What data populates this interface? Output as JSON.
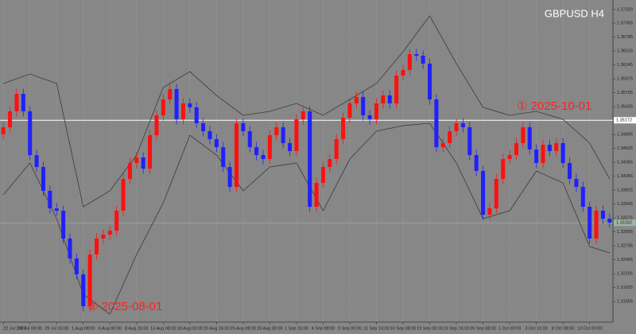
{
  "chart_data": {
    "type": "candlestick",
    "title": "GBPUSD  H4",
    "annotations": [
      "① 2025-10-01",
      "② 2025-08-01"
    ],
    "annotation_color": "#ff2020",
    "up_color": "#ff1010",
    "down_color": "#2020ff",
    "background": "#878787",
    "xgrid": true,
    "categories": [
      "22 Jul 2025",
      null,
      null,
      null,
      "24 Jul 08:00",
      null,
      null,
      null,
      "29 Jul 16:00",
      null,
      null,
      null,
      "1 Aug 08:00",
      null,
      null,
      null,
      "6 Aug 00:00",
      null,
      null,
      null,
      "8 Aug 16:00",
      null,
      null,
      null,
      "13 Aug 08:00",
      null,
      null,
      null,
      "18 Aug 00:00",
      null,
      null,
      null,
      "20 Aug 16:00",
      null,
      null,
      null,
      "25 Aug 08:00",
      null,
      null,
      null,
      "28 Aug 00:00",
      null,
      null,
      null,
      "1 Sep 16:00",
      null,
      null,
      null,
      "4 Sep 08:00",
      null,
      null,
      null,
      "9 Sep 00:00",
      null,
      null,
      null,
      "11 Sep 16:00",
      null,
      null,
      null,
      "16 Sep 08:00",
      null,
      null,
      null,
      "19 Sep 00:00",
      null,
      null,
      null,
      "23 Sep 16:00",
      null,
      null,
      null,
      "26 Sep 08:00",
      null,
      null,
      null,
      "1 Oct 00:00",
      null,
      null,
      null,
      "3 Oct 16:00",
      null,
      null,
      null,
      "8 Oct 08:00",
      null,
      null,
      null,
      "13 Oct 00:00",
      null,
      null,
      null
    ],
    "open": [
      1.349,
      1.35036,
      1.35345,
      1.35684,
      1.35345,
      1.34496,
      1.34265,
      1.33802,
      1.33462,
      1.33416,
      1.32876,
      1.3249,
      1.32182,
      1.31564,
      1.32567,
      1.32876,
      1.32953,
      1.3303,
      1.33416,
      1.34033,
      1.34342,
      1.3445,
      1.34234,
      1.34882,
      1.35268,
      1.35576,
      1.35777,
      1.35191,
      1.35499,
      1.35422,
      1.35113,
      1.34959,
      1.34805,
      1.3465,
      1.34265,
      1.33879,
      1.35113,
      1.34959,
      1.3465,
      1.34496,
      1.34419,
      1.34882,
      1.35036,
      1.34728,
      1.34573,
      1.35191,
      1.35345,
      1.33493,
      1.33956,
      1.34265,
      1.34419,
      1.34805,
      1.35221,
      1.35499,
      1.35623,
      1.35268,
      1.35191,
      1.35499,
      1.35653,
      1.35499,
      1.36039,
      1.36147,
      1.36456,
      1.36425,
      1.36271,
      1.35576,
      1.3465,
      1.34728,
      1.34959,
      1.35113,
      1.35036,
      1.34496,
      1.34188,
      1.33339,
      1.33462,
      1.34033,
      1.34419,
      1.34496,
      1.34728,
      1.35036,
      1.34604,
      1.34342,
      1.34697,
      1.34573,
      1.34728,
      1.34342,
      1.34033,
      1.33879,
      1.33493,
      1.32876,
      1.33416,
      1.33262
    ],
    "high": [
      1.35136,
      1.35445,
      1.35784,
      1.35784,
      1.35445,
      1.34596,
      1.34365,
      1.33902,
      1.33562,
      1.33516,
      1.32976,
      1.3259,
      1.32282,
      1.32667,
      1.32976,
      1.33053,
      1.3313,
      1.33516,
      1.34133,
      1.34442,
      1.3455,
      1.3455,
      1.34982,
      1.35368,
      1.35676,
      1.35877,
      1.35877,
      1.35599,
      1.35599,
      1.35522,
      1.35213,
      1.35059,
      1.34905,
      1.3475,
      1.34365,
      1.35213,
      1.35213,
      1.35059,
      1.3475,
      1.34596,
      1.34982,
      1.35136,
      1.35136,
      1.34828,
      1.35291,
      1.35445,
      1.35445,
      1.34056,
      1.34365,
      1.34519,
      1.34905,
      1.35321,
      1.35599,
      1.35723,
      1.35723,
      1.35368,
      1.35599,
      1.35753,
      1.35753,
      1.36139,
      1.36247,
      1.36556,
      1.36556,
      1.36525,
      1.36371,
      1.35676,
      1.34828,
      1.35059,
      1.35213,
      1.35213,
      1.35136,
      1.34596,
      1.34288,
      1.33562,
      1.34133,
      1.34519,
      1.34596,
      1.34828,
      1.35136,
      1.35136,
      1.34704,
      1.34797,
      1.34797,
      1.34828,
      1.34828,
      1.34442,
      1.34133,
      1.33979,
      1.33593,
      1.33516,
      1.33516,
      1.33362
    ],
    "low": [
      1.348,
      1.34936,
      1.35245,
      1.35245,
      1.34396,
      1.34165,
      1.33702,
      1.33362,
      1.33316,
      1.32776,
      1.3239,
      1.32082,
      1.31464,
      1.31464,
      1.32467,
      1.32776,
      1.32853,
      1.3293,
      1.33316,
      1.33933,
      1.34242,
      1.34134,
      1.34134,
      1.34782,
      1.35168,
      1.35476,
      1.35091,
      1.35091,
      1.35322,
      1.35013,
      1.34859,
      1.34705,
      1.3455,
      1.34165,
      1.33779,
      1.33779,
      1.34859,
      1.3455,
      1.34396,
      1.34319,
      1.34319,
      1.34782,
      1.34628,
      1.34473,
      1.34473,
      1.35091,
      1.33393,
      1.33393,
      1.33856,
      1.34165,
      1.34319,
      1.34705,
      1.35121,
      1.35399,
      1.35168,
      1.35091,
      1.35091,
      1.35399,
      1.35399,
      1.35399,
      1.35939,
      1.36047,
      1.36325,
      1.36171,
      1.35476,
      1.3455,
      1.3455,
      1.34628,
      1.34859,
      1.34936,
      1.34396,
      1.34088,
      1.33239,
      1.33239,
      1.33362,
      1.33933,
      1.34319,
      1.34396,
      1.34628,
      1.34504,
      1.34242,
      1.34242,
      1.34473,
      1.34473,
      1.34242,
      1.33933,
      1.33779,
      1.33393,
      1.32776,
      1.32776,
      1.33162,
      1.33085
    ],
    "close": [
      1.35036,
      1.35345,
      1.35684,
      1.35345,
      1.34496,
      1.34265,
      1.33802,
      1.33462,
      1.33416,
      1.32876,
      1.3249,
      1.32182,
      1.31564,
      1.32567,
      1.32876,
      1.32953,
      1.3303,
      1.33416,
      1.34033,
      1.34342,
      1.3445,
      1.34234,
      1.34882,
      1.35268,
      1.35576,
      1.35777,
      1.35191,
      1.35499,
      1.35422,
      1.35113,
      1.34959,
      1.34805,
      1.3465,
      1.34265,
      1.33879,
      1.35113,
      1.34959,
      1.3465,
      1.34496,
      1.34419,
      1.34882,
      1.35036,
      1.34728,
      1.34573,
      1.35191,
      1.35345,
      1.33493,
      1.33956,
      1.34265,
      1.34419,
      1.34805,
      1.35221,
      1.35499,
      1.35623,
      1.35268,
      1.35191,
      1.35499,
      1.35653,
      1.35499,
      1.36039,
      1.36147,
      1.36456,
      1.36425,
      1.36271,
      1.35576,
      1.3465,
      1.34728,
      1.34959,
      1.35113,
      1.35036,
      1.34496,
      1.34188,
      1.33339,
      1.33462,
      1.34033,
      1.34419,
      1.34496,
      1.34728,
      1.35036,
      1.34604,
      1.34342,
      1.34697,
      1.34573,
      1.34728,
      1.34342,
      1.34033,
      1.33879,
      1.33493,
      1.32876,
      1.33416,
      1.33262,
      1.33185
    ],
    "lines": [
      {
        "color": "#3a3a3a",
        "x": [
          0,
          4,
          8,
          12,
          16,
          20,
          24,
          28,
          32,
          36,
          40,
          44,
          48,
          52,
          56,
          60,
          64,
          68,
          72,
          76,
          80,
          84,
          88,
          91
        ],
        "values": [
          1.35885,
          1.3607,
          1.35885,
          1.33493,
          1.33802,
          1.34496,
          1.35808,
          1.36116,
          1.35653,
          1.35268,
          1.35345,
          1.35499,
          1.35268,
          1.35576,
          1.35885,
          1.36502,
          1.37196,
          1.36271,
          1.35422,
          1.35268,
          1.35345,
          1.35191,
          1.34728,
          1.34033
        ]
      },
      {
        "color": "#3a3a3a",
        "x": [
          0,
          4,
          8,
          12,
          16,
          20,
          24,
          28,
          32,
          36,
          40,
          44,
          48,
          52,
          56,
          60,
          64,
          68,
          72,
          76,
          80,
          84,
          88,
          91
        ],
        "values": [
          1.33725,
          1.34342,
          1.33262,
          1.31796,
          1.3141,
          1.32567,
          1.3357,
          1.34882,
          1.34496,
          1.33802,
          1.34265,
          1.34342,
          1.33416,
          1.34419,
          1.34959,
          1.35067,
          1.35113,
          1.34342,
          1.33262,
          1.33416,
          1.34188,
          1.33956,
          1.32722,
          1.32598
        ]
      }
    ],
    "hlines": [
      {
        "value": 1.35172,
        "color": "#ffffff"
      },
      {
        "value": 1.33182,
        "color": "#9fb4a4"
      }
    ],
    "ylim": [
      1.31256,
      1.37505
    ],
    "yticks": [
      {
        "value": 1.3732,
        "label": "1.37320"
      },
      1.37055,
      1.36785,
      1.36515,
      1.36245,
      1.35975,
      1.35705,
      1.35435,
      1.34895,
      1.34625,
      1.34355,
      1.34085,
      1.33815,
      1.33545,
      1.33275,
      1.33005,
      1.32735,
      1.32465,
      1.32195,
      1.31925,
      1.31655
    ]
  }
}
